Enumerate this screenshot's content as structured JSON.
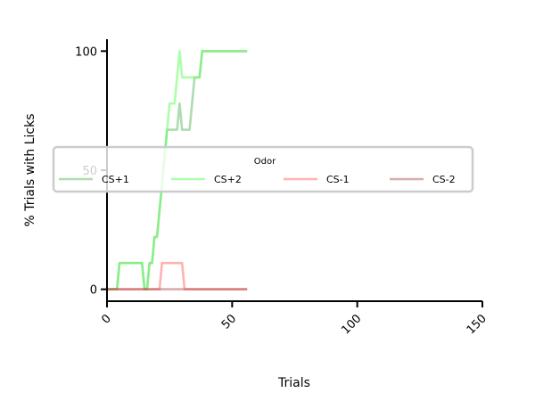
{
  "chart_data": {
    "type": "line",
    "xlabel": "Trials",
    "ylabel": "% Trials with Licks",
    "xlim": [
      0,
      150
    ],
    "ylim": [
      -5,
      105
    ],
    "xticks": [
      0,
      50,
      100,
      150
    ],
    "yticks": [
      0,
      50,
      100
    ],
    "xtick_labels": [
      "0",
      "50",
      "100",
      "150"
    ],
    "ytick_labels": [
      "0",
      "50",
      "100"
    ],
    "grid": false,
    "legend": {
      "title": "Odor",
      "placement": "center-left",
      "columns": 4
    },
    "series": [
      {
        "name": "CS+1",
        "color": "#2ca02c",
        "opacity": 0.38,
        "x": [
          0,
          4,
          5,
          14,
          15,
          16,
          17,
          18,
          19,
          20,
          21,
          22,
          23,
          24,
          25,
          26,
          27,
          28,
          29,
          30,
          31,
          32,
          33,
          34,
          35,
          36,
          37,
          38,
          39,
          40,
          56
        ],
        "y": [
          0,
          0,
          11,
          11,
          0,
          0,
          11,
          11,
          22,
          22,
          33,
          44,
          56,
          67,
          67,
          67,
          67,
          67,
          78,
          67,
          67,
          67,
          67,
          78,
          89,
          89,
          89,
          100,
          100,
          100,
          100
        ]
      },
      {
        "name": "CS+2",
        "color": "#66ff66",
        "opacity": 0.55,
        "x": [
          0,
          4,
          5,
          14,
          15,
          16,
          17,
          18,
          19,
          20,
          21,
          22,
          23,
          24,
          25,
          26,
          27,
          28,
          29,
          30,
          31,
          32,
          33,
          34,
          35,
          36,
          37,
          38,
          39,
          40,
          56
        ],
        "y": [
          0,
          0,
          11,
          11,
          0,
          0,
          11,
          11,
          22,
          22,
          33,
          44,
          56,
          67,
          78,
          78,
          78,
          89,
          100,
          89,
          89,
          89,
          89,
          89,
          89,
          89,
          89,
          100,
          100,
          100,
          100
        ]
      },
      {
        "name": "CS-1",
        "color": "#ff6666",
        "opacity": 0.5,
        "x": [
          0,
          21,
          22,
          30,
          31,
          56
        ],
        "y": [
          0,
          0,
          11,
          11,
          0,
          0
        ]
      },
      {
        "name": "CS-2",
        "color": "#a03030",
        "opacity": 0.4,
        "x": [
          0,
          56
        ],
        "y": [
          0,
          0
        ]
      }
    ]
  }
}
